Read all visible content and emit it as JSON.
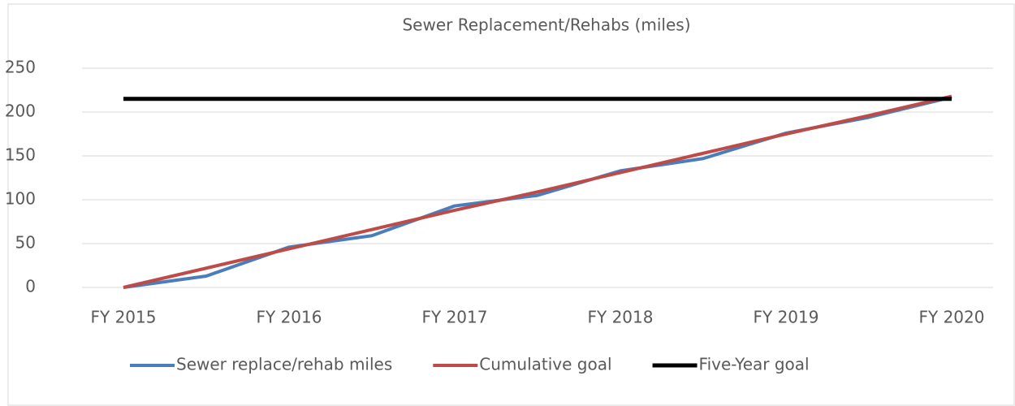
{
  "chart_data": {
    "type": "line",
    "title": "Sewer Replacement/Rehabs (miles)",
    "categories": [
      "FY 2015",
      null,
      "FY 2016",
      null,
      "FY 2017",
      null,
      "FY 2018",
      null,
      "FY 2019",
      null,
      "FY 2020"
    ],
    "series": [
      {
        "name": "Sewer replace/rehab miles",
        "color": "#4a7ebb",
        "values": [
          0,
          13,
          46,
          59,
          93,
          105,
          133,
          147,
          176,
          194,
          217
        ]
      },
      {
        "name": "Cumulative goal",
        "color": "#be4b48",
        "values": [
          0,
          22,
          44,
          66,
          88,
          109,
          131,
          153,
          175,
          196,
          218
        ]
      },
      {
        "name": "Five-Year goal",
        "color": "#000000",
        "values": [
          215,
          215,
          215,
          215,
          215,
          215,
          215,
          215,
          215,
          215,
          215
        ]
      }
    ],
    "ylim": [
      0,
      250
    ],
    "yticks": [
      0,
      50,
      100,
      150,
      200,
      250
    ],
    "grid": true,
    "legend": "bottom"
  }
}
